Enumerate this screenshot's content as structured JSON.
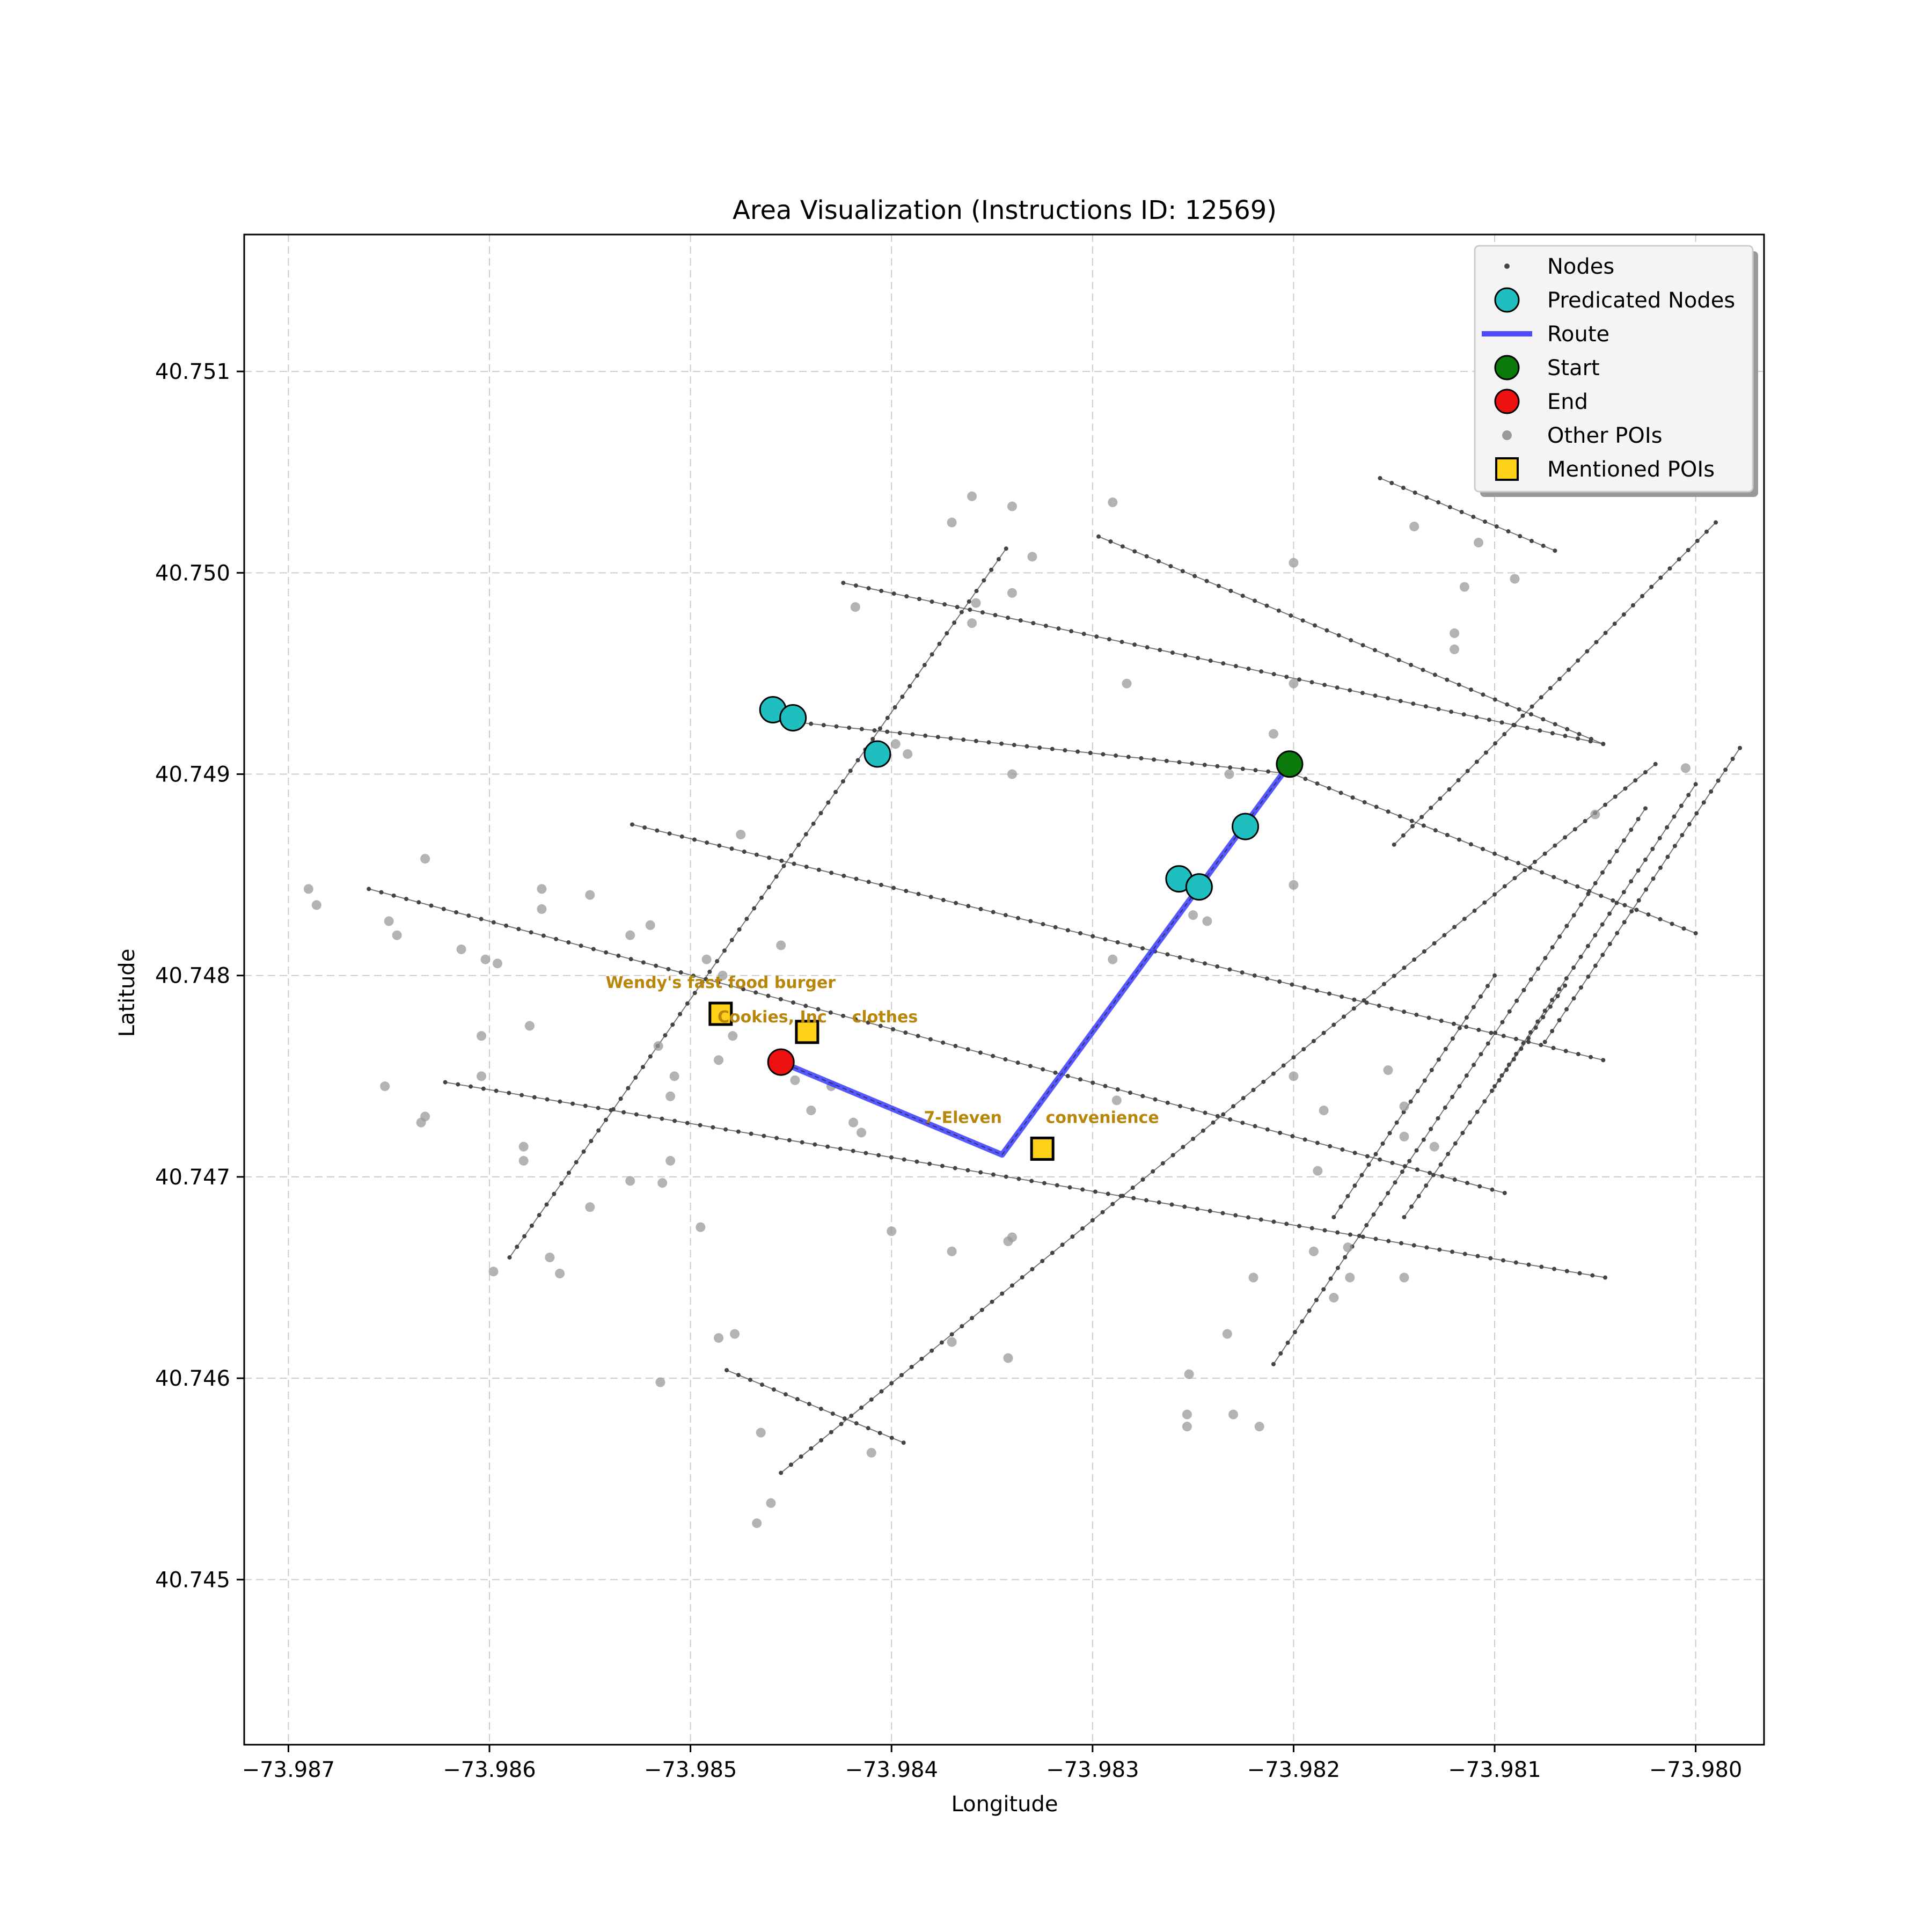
{
  "title": "Area Visualization (Instructions ID: 12569)",
  "xlabel": "Longitude",
  "ylabel": "Latitude",
  "colors": {
    "node": "#444444",
    "street": "#555555",
    "predicated": "#1fbfbf",
    "route": "#3a3aff",
    "start": "#0a7a0a",
    "end": "#ee1111",
    "other_poi": "#9a9a9a",
    "mentioned_poi": "#ffd21a",
    "poi_label": "#b8860b"
  },
  "legend": {
    "placement": "top-right",
    "items": [
      {
        "label": "Nodes",
        "marker": "small-dot"
      },
      {
        "label": "Predicated Nodes",
        "marker": "cyan-circle"
      },
      {
        "label": "Route",
        "marker": "blue-line"
      },
      {
        "label": "Start",
        "marker": "green-circle"
      },
      {
        "label": "End",
        "marker": "red-circle"
      },
      {
        "label": "Other POIs",
        "marker": "gray-dot"
      },
      {
        "label": "Mentioned POIs",
        "marker": "yellow-square"
      }
    ]
  },
  "chart_data": {
    "type": "scatter",
    "title": "Area Visualization (Instructions ID: 12569)",
    "xlabel": "Longitude",
    "ylabel": "Latitude",
    "xlim": [
      -73.98722,
      -73.97966
    ],
    "ylim": [
      40.74418,
      40.75168
    ],
    "grid": true,
    "x_ticks": [
      -73.987,
      -73.986,
      -73.985,
      -73.984,
      -73.983,
      -73.982,
      -73.981,
      -73.98
    ],
    "x_tick_labels": [
      "−73.987",
      "−73.986",
      "−73.985",
      "−73.984",
      "−73.983",
      "−73.982",
      "−73.981",
      "−73.980"
    ],
    "y_ticks": [
      40.745,
      40.746,
      40.747,
      40.748,
      40.749,
      40.75,
      40.751
    ],
    "y_tick_labels": [
      "40.745",
      "40.746",
      "40.747",
      "40.748",
      "40.749",
      "40.750",
      "40.751"
    ],
    "streets": [
      [
        [
          -73.98459,
          40.74927
        ],
        [
          -73.982,
          40.749
        ],
        [
          -73.98,
          40.74821
        ]
      ],
      [
        [
          -73.98424,
          40.74995
        ],
        [
          -73.98046,
          40.74915
        ]
      ],
      [
        [
          -73.98297,
          40.75018
        ],
        [
          -73.98046,
          40.74915
        ]
      ],
      [
        [
          -73.98157,
          40.75047
        ],
        [
          -73.9807,
          40.75011
        ]
      ],
      [
        [
          -73.98529,
          40.74875
        ],
        [
          -73.98046,
          40.74758
        ]
      ],
      [
        [
          -73.9866,
          40.74843
        ],
        [
          -73.98095,
          40.74692
        ]
      ],
      [
        [
          -73.98622,
          40.74747
        ],
        [
          -73.98045,
          40.7465
        ]
      ],
      [
        [
          -73.98482,
          40.74604
        ],
        [
          -73.98394,
          40.74568
        ]
      ],
      [
        [
          -73.9859,
          40.7466
        ],
        [
          -73.98343,
          40.75012
        ]
      ],
      [
        [
          -73.98455,
          40.74553
        ],
        [
          -73.9802,
          40.74905
        ]
      ],
      [
        [
          -73.9815,
          40.74865
        ],
        [
          -73.9799,
          40.75025
        ]
      ],
      [
        [
          -73.9821,
          40.74607
        ],
        [
          -73.98025,
          40.74883
        ]
      ],
      [
        [
          -73.981,
          40.74745
        ],
        [
          -73.98,
          40.74895
        ]
      ],
      [
        [
          -73.98075,
          40.74767
        ],
        [
          -73.97978,
          40.74913
        ]
      ],
      [
        [
          -73.98145,
          40.7468
        ],
        [
          -73.98065,
          40.74795
        ]
      ],
      [
        [
          -73.9818,
          40.7468
        ],
        [
          -73.981,
          40.748
        ]
      ]
    ],
    "predicated_nodes": [
      {
        "lon": -73.98459,
        "lat": 40.74932
      },
      {
        "lon": -73.98449,
        "lat": 40.74928
      },
      {
        "lon": -73.98407,
        "lat": 40.7491
      },
      {
        "lon": -73.98257,
        "lat": 40.74848
      },
      {
        "lon": -73.98247,
        "lat": 40.74844
      },
      {
        "lon": -73.98224,
        "lat": 40.74874
      }
    ],
    "route": [
      {
        "lon": -73.98202,
        "lat": 40.74905
      },
      {
        "lon": -73.98345,
        "lat": 40.74711
      },
      {
        "lon": -73.98455,
        "lat": 40.74757
      }
    ],
    "start": {
      "lon": -73.98202,
      "lat": 40.74905
    },
    "end": {
      "lon": -73.98455,
      "lat": 40.74757
    },
    "other_pois": [
      [
        -73.9869,
        40.74843
      ],
      [
        -73.98686,
        40.74835
      ],
      [
        -73.9865,
        40.74827
      ],
      [
        -73.98646,
        40.7482
      ],
      [
        -73.98632,
        40.74858
      ],
      [
        -73.98614,
        40.74813
      ],
      [
        -73.98602,
        40.74808
      ],
      [
        -73.98596,
        40.74806
      ],
      [
        -73.98574,
        40.74843
      ],
      [
        -73.98574,
        40.74833
      ],
      [
        -73.9855,
        40.7484
      ],
      [
        -73.9853,
        40.7482
      ],
      [
        -73.9852,
        40.74825
      ],
      [
        -73.9858,
        40.74775
      ],
      [
        -73.98604,
        40.7477
      ],
      [
        -73.98604,
        40.7475
      ],
      [
        -73.98632,
        40.7473
      ],
      [
        -73.98634,
        40.74727
      ],
      [
        -73.98652,
        40.74745
      ],
      [
        -73.98583,
        40.74715
      ],
      [
        -73.98583,
        40.74708
      ],
      [
        -73.9855,
        40.74685
      ],
      [
        -73.9853,
        40.74698
      ],
      [
        -73.98514,
        40.74697
      ],
      [
        -73.9851,
        40.7474
      ],
      [
        -73.98508,
        40.7475
      ],
      [
        -73.9851,
        40.74708
      ],
      [
        -73.98516,
        40.74765
      ],
      [
        -73.98486,
        40.74758
      ],
      [
        -73.98479,
        40.7477
      ],
      [
        -73.98492,
        40.74808
      ],
      [
        -73.98484,
        40.748
      ],
      [
        -73.98455,
        40.74815
      ],
      [
        -73.98475,
        40.7487
      ],
      [
        -73.98495,
        40.74675
      ],
      [
        -73.9857,
        40.7466
      ],
      [
        -73.98565,
        40.74652
      ],
      [
        -73.98598,
        40.74653
      ],
      [
        -73.98478,
        40.74622
      ],
      [
        -73.98486,
        40.7462
      ],
      [
        -73.98515,
        40.74598
      ],
      [
        -73.98465,
        40.74573
      ],
      [
        -73.98467,
        40.74528
      ],
      [
        -73.9846,
        40.74538
      ],
      [
        -73.9841,
        40.74563
      ],
      [
        -73.9843,
        40.74745
      ],
      [
        -73.9844,
        40.74733
      ],
      [
        -73.98419,
        40.74727
      ],
      [
        -73.98415,
        40.74722
      ],
      [
        -73.98448,
        40.74748
      ],
      [
        -73.984,
        40.74673
      ],
      [
        -73.9837,
        40.74663
      ],
      [
        -73.9837,
        40.74618
      ],
      [
        -73.98342,
        40.74668
      ],
      [
        -73.98342,
        40.7461
      ],
      [
        -73.9834,
        40.7467
      ],
      [
        -73.98288,
        40.74738
      ],
      [
        -73.9829,
        40.74808
      ],
      [
        -73.9834,
        40.749
      ],
      [
        -73.98398,
        40.74915
      ],
      [
        -73.98392,
        40.7491
      ],
      [
        -73.98418,
        40.74983
      ],
      [
        -73.9836,
        40.74975
      ],
      [
        -73.98358,
        40.74985
      ],
      [
        -73.9834,
        40.7499
      ],
      [
        -73.9833,
        40.75008
      ],
      [
        -73.9837,
        40.75025
      ],
      [
        -73.9836,
        40.75038
      ],
      [
        -73.9834,
        40.75033
      ],
      [
        -73.9829,
        40.75035
      ],
      [
        -73.98283,
        40.74945
      ],
      [
        -73.982,
        40.75005
      ],
      [
        -73.982,
        40.74945
      ],
      [
        -73.9821,
        40.7492
      ],
      [
        -73.98232,
        40.749
      ],
      [
        -73.9825,
        40.7483
      ],
      [
        -73.98243,
        40.74827
      ],
      [
        -73.982,
        40.74845
      ],
      [
        -73.982,
        40.7475
      ],
      [
        -73.98185,
        40.74733
      ],
      [
        -73.98188,
        40.74703
      ],
      [
        -73.9819,
        40.74663
      ],
      [
        -73.9818,
        40.7464
      ],
      [
        -73.98173,
        40.74665
      ],
      [
        -73.98172,
        40.7465
      ],
      [
        -73.98153,
        40.74753
      ],
      [
        -73.98145,
        40.74735
      ],
      [
        -73.98145,
        40.7472
      ],
      [
        -73.9813,
        40.74715
      ],
      [
        -73.98145,
        40.7465
      ],
      [
        -73.98252,
        40.74602
      ],
      [
        -73.98253,
        40.74582
      ],
      [
        -73.98253,
        40.74576
      ],
      [
        -73.98233,
        40.74622
      ],
      [
        -73.9823,
        40.74582
      ],
      [
        -73.98217,
        40.74576
      ],
      [
        -73.9822,
        40.7465
      ],
      [
        -73.9812,
        40.74962
      ],
      [
        -73.9812,
        40.7497
      ],
      [
        -73.98115,
        40.74993
      ],
      [
        -73.98108,
        40.75015
      ],
      [
        -73.9809,
        40.74997
      ],
      [
        -73.9814,
        40.75023
      ],
      [
        -73.9805,
        40.7488
      ],
      [
        -73.98005,
        40.74903
      ]
    ],
    "mentioned_pois": [
      {
        "name": "Wendy's fast food burger",
        "lon": -73.98485,
        "lat": 40.74781
      },
      {
        "name": "Cookies, Inc",
        "lon": -73.98442,
        "lat": 40.74772
      },
      {
        "name": "clothes",
        "lon": -73.98442,
        "lat": 40.74772
      },
      {
        "name": "7-Eleven",
        "lon": -73.98325,
        "lat": 40.74714
      },
      {
        "name": "convenience",
        "lon": -73.98325,
        "lat": 40.74714
      }
    ]
  }
}
